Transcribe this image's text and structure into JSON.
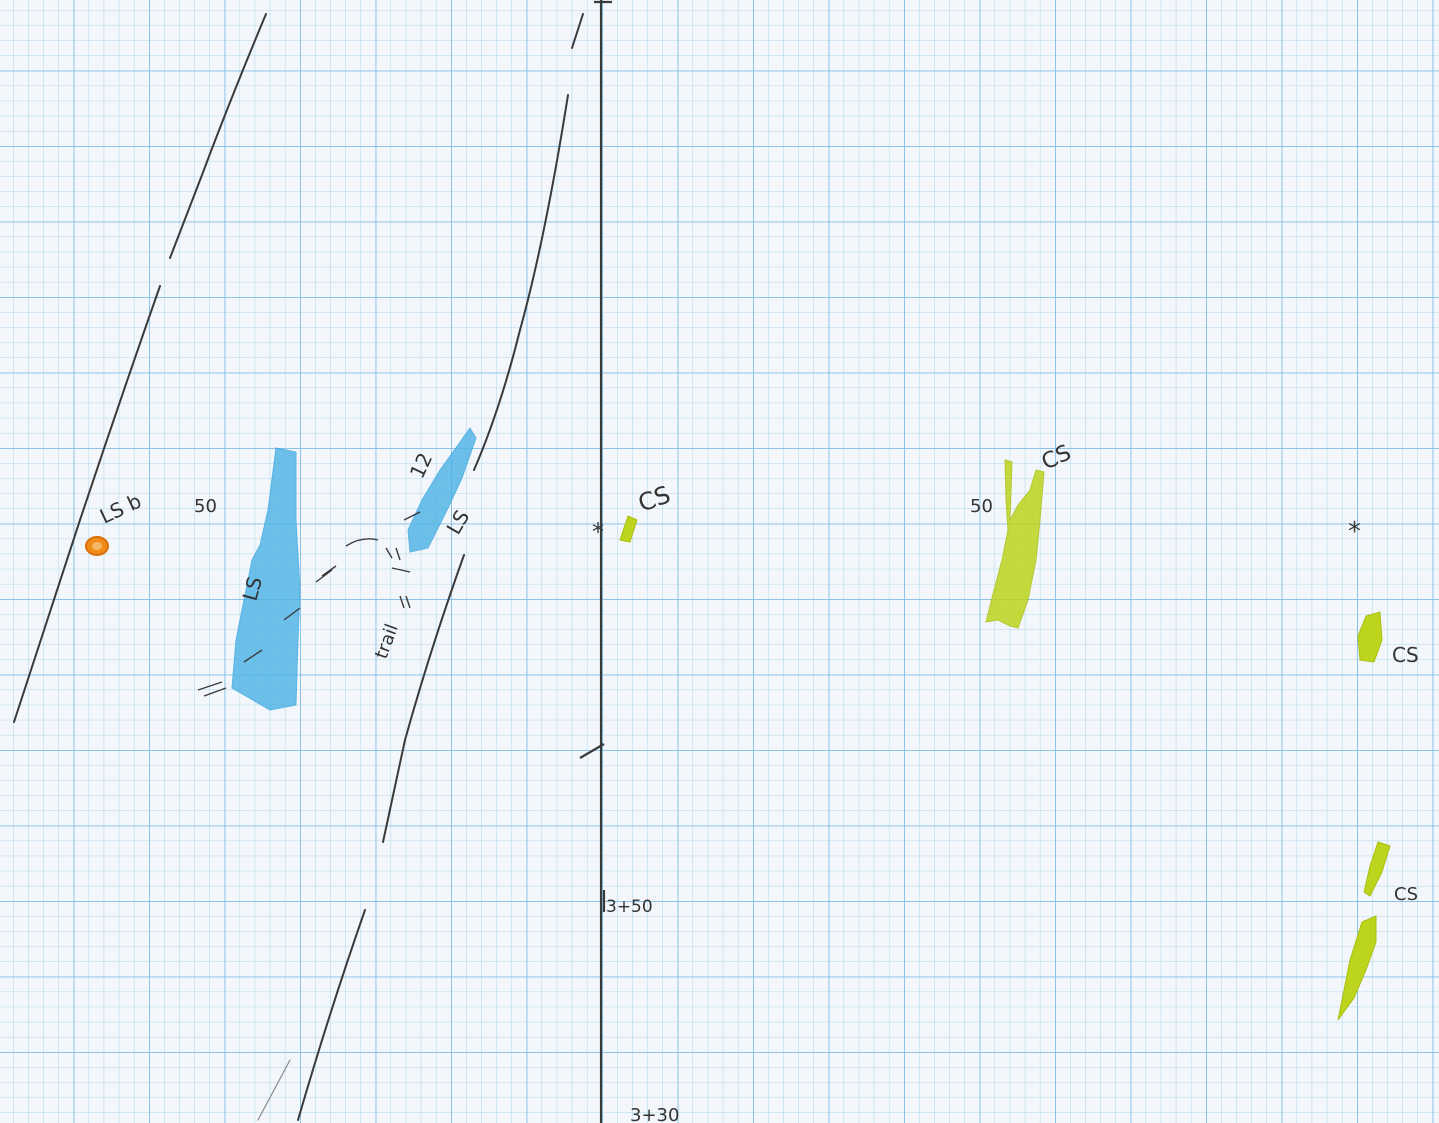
{
  "paper": {
    "background": "#f3f7fb",
    "fine_grid_color": "#9ccbe8",
    "major_grid_color": "#7fbce4"
  },
  "colors": {
    "pencil": "#3a3a3a",
    "blue_fill": "#4fb3e6",
    "yellow_green_fill": "#bcd41c",
    "orange_fill": "#f08a18"
  },
  "labels": {
    "ls_b": "LS b",
    "fifty_left": "50",
    "ls_blue_left": "LS",
    "twelve": "12",
    "ls_blue_right": "LS",
    "trail": "trail",
    "cs_center": "CS",
    "fifty_mid": "50",
    "cs_mid": "CS",
    "cs_right_upper": "CS",
    "cs_right_lower": "CS",
    "station_3450": "3+50",
    "station_3430": "3+30"
  },
  "icons": {
    "orange_marker": "orange-ellipse-icon",
    "control_point_right": "star-icon"
  }
}
